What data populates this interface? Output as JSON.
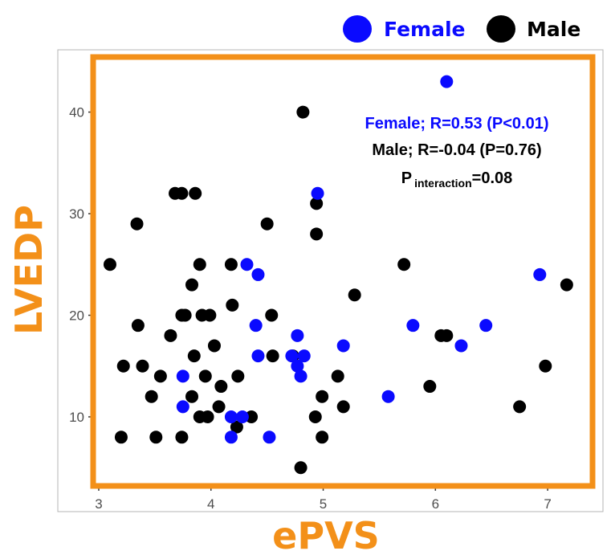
{
  "chart_data": {
    "type": "scatter",
    "xlabel": "ePVS",
    "ylabel": "LVEDP",
    "xlim": [
      2.95,
      7.4
    ],
    "ylim": [
      3.2,
      45.5
    ],
    "xticks": [
      3,
      4,
      5,
      6,
      7
    ],
    "yticks": [
      10,
      20,
      30,
      40
    ],
    "grid": false,
    "legend_position": "top-right",
    "colors": {
      "female": "#0a0aff",
      "male": "#000000",
      "frame": "#f39019",
      "axis_title": "#f39019"
    },
    "series": [
      {
        "name": "Female",
        "color": "#0a0aff",
        "points": [
          [
            6.1,
            43
          ],
          [
            4.95,
            32
          ],
          [
            4.32,
            25
          ],
          [
            4.42,
            24
          ],
          [
            6.93,
            24
          ],
          [
            4.4,
            19
          ],
          [
            5.8,
            19
          ],
          [
            6.45,
            19
          ],
          [
            4.77,
            18
          ],
          [
            5.18,
            17
          ],
          [
            6.23,
            17
          ],
          [
            4.42,
            16
          ],
          [
            4.72,
            16
          ],
          [
            4.83,
            16
          ],
          [
            4.77,
            15
          ],
          [
            3.75,
            14
          ],
          [
            4.8,
            14
          ],
          [
            5.58,
            12
          ],
          [
            3.75,
            11
          ],
          [
            4.18,
            10
          ],
          [
            4.28,
            10
          ],
          [
            4.18,
            8
          ],
          [
            4.52,
            8
          ]
        ]
      },
      {
        "name": "Male",
        "color": "#000000",
        "points": [
          [
            4.82,
            40
          ],
          [
            3.68,
            32
          ],
          [
            3.74,
            32
          ],
          [
            3.86,
            32
          ],
          [
            4.94,
            31
          ],
          [
            3.34,
            29
          ],
          [
            4.5,
            29
          ],
          [
            4.94,
            28
          ],
          [
            3.1,
            25
          ],
          [
            3.9,
            25
          ],
          [
            4.18,
            25
          ],
          [
            5.72,
            25
          ],
          [
            7.17,
            23
          ],
          [
            3.83,
            23
          ],
          [
            5.28,
            22
          ],
          [
            4.19,
            21
          ],
          [
            3.74,
            20
          ],
          [
            3.77,
            20
          ],
          [
            3.92,
            20
          ],
          [
            3.99,
            20
          ],
          [
            4.54,
            20
          ],
          [
            3.64,
            18
          ],
          [
            6.05,
            18
          ],
          [
            6.1,
            18
          ],
          [
            3.35,
            19
          ],
          [
            4.03,
            17
          ],
          [
            3.85,
            16
          ],
          [
            4.55,
            16
          ],
          [
            4.73,
            16
          ],
          [
            3.22,
            15
          ],
          [
            3.39,
            15
          ],
          [
            5.13,
            14
          ],
          [
            3.55,
            14
          ],
          [
            3.95,
            14
          ],
          [
            4.24,
            14
          ],
          [
            6.98,
            15
          ],
          [
            5.95,
            13
          ],
          [
            4.09,
            13
          ],
          [
            3.83,
            12
          ],
          [
            4.99,
            12
          ],
          [
            3.47,
            12
          ],
          [
            4.07,
            11
          ],
          [
            5.18,
            11
          ],
          [
            6.75,
            11
          ],
          [
            3.9,
            10
          ],
          [
            3.97,
            10
          ],
          [
            4.36,
            10
          ],
          [
            4.93,
            10
          ],
          [
            4.23,
            9
          ],
          [
            3.2,
            8
          ],
          [
            3.51,
            8
          ],
          [
            3.74,
            8
          ],
          [
            4.99,
            8
          ],
          [
            4.8,
            5
          ]
        ]
      }
    ],
    "annotations": [
      {
        "text": "Female; R=0.53 (P<0.01)",
        "color": "#0a0aff"
      },
      {
        "text": "Male; R=-0.04 (P=0.76)",
        "color": "#000000"
      },
      {
        "text_main": "P",
        "text_sub": "interaction",
        "text_tail": "=0.08",
        "color": "#000000"
      }
    ]
  }
}
